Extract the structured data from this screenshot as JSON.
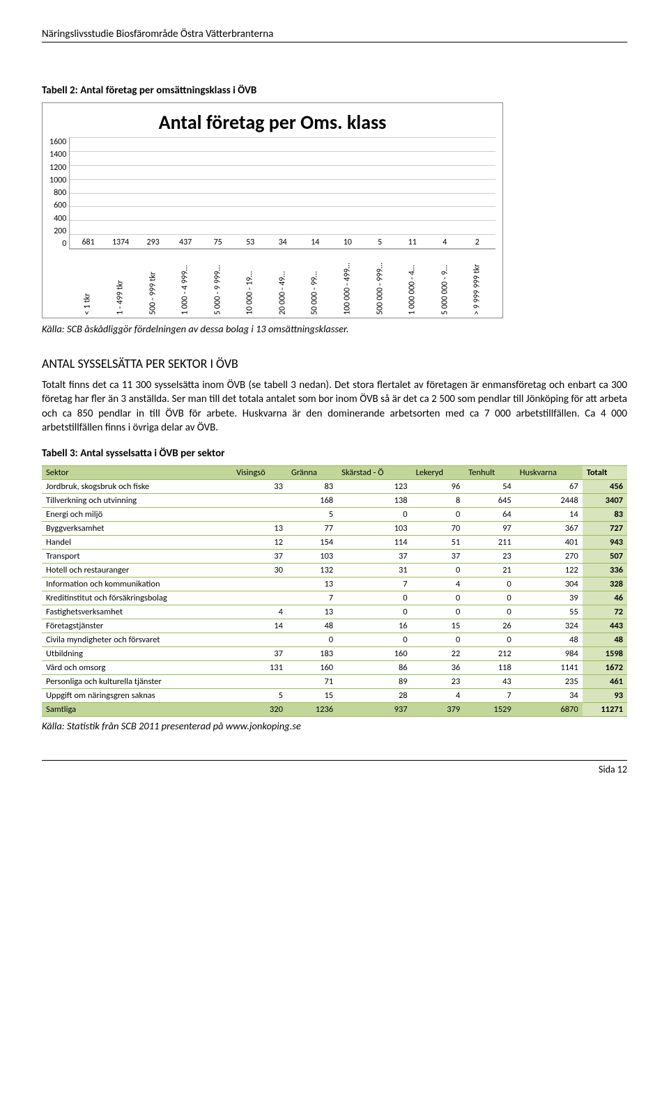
{
  "header": "Näringslivsstudie Biosfärområde Östra Vätterbranterna",
  "tabell2_title": "Tabell 2: Antal företag per omsättningsklass i ÖVB",
  "chart": {
    "type": "bar",
    "title": "Antal företag per Oms. klass",
    "title_fontsize": 28,
    "ylim": [
      0,
      1600
    ],
    "ytick_step": 200,
    "yticks": [
      "1600",
      "1400",
      "1200",
      "1000",
      "800",
      "600",
      "400",
      "200",
      "0"
    ],
    "bar_color": "#4f81bd",
    "grid_color": "#cccccc",
    "axis_color": "#999999",
    "background_color": "#ffffff",
    "label_fontsize": 12,
    "categories": [
      "< 1 tkr",
      "1 - 499 tkr",
      "500 - 999 tkr",
      "1 000 - 4 999…",
      "5 000 - 9 999…",
      "10 000 - 19…",
      "20 000 - 49…",
      "50 000 - 99…",
      "100 000 - 499…",
      "500 000 - 999…",
      "1 000 000 - 4…",
      "5 000 000 - 9…",
      "> 9 999 999 tkr"
    ],
    "values": [
      681,
      1374,
      293,
      437,
      75,
      53,
      34,
      14,
      10,
      5,
      11,
      4,
      2
    ]
  },
  "chart_caption": "Källa: SCB åskådliggör fördelningen av dessa bolag i 13 omsättningsklasser.",
  "section_heading": "ANTAL SYSSELSÄTTA PER SEKTOR I ÖVB",
  "body_text": "Totalt finns det ca 11 300 sysselsätta inom ÖVB (se tabell 3 nedan). Det stora flertalet av företagen är enmansföretag och enbart ca 300 företag har fler än 3 anställda. Ser man till det totala antalet som bor inom ÖVB så är det ca 2 500 som pendlar till Jönköping för att arbeta och ca 850 pendlar in till ÖVB för arbete. Huskvarna är den dominerande arbetsorten med ca 7 000 arbetstillfällen. Ca 4 000 arbetstillfällen finns i övriga delar av ÖVB.",
  "tabell3_title": "Tabell 3: Antal sysselsatta i ÖVB per sektor",
  "table": {
    "header_bg": "#c2d69a",
    "header_border": "#9bbb59",
    "totalt_bg": "#d7e4bc",
    "row_border": "#9bbb59",
    "columns": [
      "Sektor",
      "Visingsö",
      "Gränna",
      "Skärstad - Ö",
      "Lekeryd",
      "Tenhult",
      "Huskvarna",
      "Totalt"
    ],
    "rows": [
      [
        "Jordbruk, skogsbruk och fiske",
        "33",
        "83",
        "123",
        "96",
        "54",
        "67",
        "456"
      ],
      [
        "Tillverkning och utvinning",
        "",
        "168",
        "138",
        "8",
        "645",
        "2448",
        "3407"
      ],
      [
        "Energi och miljö",
        "",
        "5",
        "0",
        "0",
        "64",
        "14",
        "83"
      ],
      [
        "Byggverksamhet",
        "13",
        "77",
        "103",
        "70",
        "97",
        "367",
        "727"
      ],
      [
        "Handel",
        "12",
        "154",
        "114",
        "51",
        "211",
        "401",
        "943"
      ],
      [
        "Transport",
        "37",
        "103",
        "37",
        "37",
        "23",
        "270",
        "507"
      ],
      [
        "Hotell och restauranger",
        "30",
        "132",
        "31",
        "0",
        "21",
        "122",
        "336"
      ],
      [
        "Information och kommunikation",
        "",
        "13",
        "7",
        "4",
        "0",
        "304",
        "328"
      ],
      [
        "Kreditinstitut och försäkringsbolag",
        "",
        "7",
        "0",
        "0",
        "0",
        "39",
        "46"
      ],
      [
        "Fastighetsverksamhet",
        "4",
        "13",
        "0",
        "0",
        "0",
        "55",
        "72"
      ],
      [
        "Företagstjänster",
        "14",
        "48",
        "16",
        "15",
        "26",
        "324",
        "443"
      ],
      [
        "Civila myndigheter och försvaret",
        "",
        "0",
        "0",
        "0",
        "0",
        "48",
        "48"
      ],
      [
        "Utbildning",
        "37",
        "183",
        "160",
        "22",
        "212",
        "984",
        "1598"
      ],
      [
        "Vård och omsorg",
        "131",
        "160",
        "86",
        "36",
        "118",
        "1141",
        "1672"
      ],
      [
        "Personliga och kulturella tjänster",
        "",
        "71",
        "89",
        "23",
        "43",
        "235",
        "461"
      ],
      [
        "Uppgift om näringsgren saknas",
        "5",
        "15",
        "28",
        "4",
        "7",
        "34",
        "93"
      ]
    ],
    "totals": [
      "Samtliga",
      "320",
      "1236",
      "937",
      "379",
      "1529",
      "6870",
      "11271"
    ]
  },
  "table_caption": "Källa: Statistik från SCB 2011 presenterad på www.jonkoping.se",
  "footer": "Sida 12"
}
